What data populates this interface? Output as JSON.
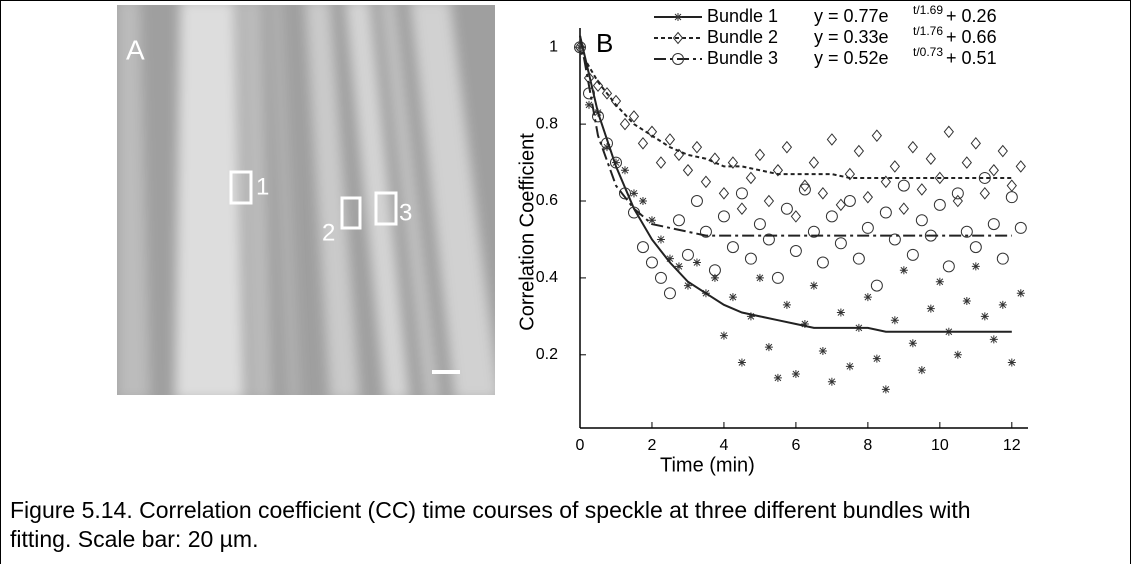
{
  "panel_a": {
    "label": "A",
    "regions": [
      "1",
      "2",
      "3"
    ]
  },
  "chart_data": {
    "type": "scatter",
    "panel_label": "B",
    "xlabel": "Time (min)",
    "ylabel": "Correlation Coefficient",
    "xlim": [
      0,
      12.45
    ],
    "ylim": [
      0.02,
      1.05
    ],
    "xticks": [
      0,
      2,
      4,
      6,
      8,
      10,
      12
    ],
    "yticks": [
      0.2,
      0.4,
      0.6,
      0.8,
      1
    ],
    "x": [
      0,
      0.25,
      0.5,
      0.75,
      1,
      1.25,
      1.5,
      1.75,
      2,
      2.25,
      2.5,
      2.75,
      3,
      3.25,
      3.5,
      3.75,
      4,
      4.25,
      4.5,
      4.75,
      5,
      5.25,
      5.5,
      5.75,
      6,
      6.25,
      6.5,
      6.75,
      7,
      7.25,
      7.5,
      7.75,
      8,
      8.25,
      8.5,
      8.75,
      9,
      9.25,
      9.5,
      9.75,
      10,
      10.25,
      10.5,
      10.75,
      11,
      11.25,
      11.5,
      11.75,
      12,
      12.25
    ],
    "fit_x": [
      0,
      0.5,
      1,
      1.5,
      2,
      2.5,
      3,
      3.5,
      4,
      4.5,
      5,
      5.5,
      6,
      6.5,
      7,
      7.5,
      8,
      8.5,
      9,
      9.5,
      10,
      10.5,
      11,
      11.5,
      12
    ],
    "series": [
      {
        "name": "Bundle 1",
        "marker": "asterisk",
        "dash": "none",
        "color": "#222222",
        "equation": {
          "base": "y = 0.77e",
          "exponent": "t/1.69",
          "rest": "+ 0.26"
        },
        "values": [
          1.0,
          0.85,
          0.83,
          0.74,
          0.7,
          0.68,
          0.62,
          0.6,
          0.55,
          0.5,
          0.45,
          0.43,
          0.38,
          0.44,
          0.36,
          0.4,
          0.25,
          0.35,
          0.18,
          0.3,
          0.4,
          0.22,
          0.14,
          0.33,
          0.15,
          0.28,
          0.38,
          0.21,
          0.13,
          0.31,
          0.17,
          0.27,
          0.35,
          0.19,
          0.11,
          0.29,
          0.42,
          0.23,
          0.16,
          0.32,
          0.39,
          0.26,
          0.2,
          0.34,
          0.43,
          0.3,
          0.24,
          0.33,
          0.18,
          0.36
        ],
        "fit": [
          1.03,
          0.83,
          0.69,
          0.58,
          0.5,
          0.44,
          0.39,
          0.36,
          0.33,
          0.31,
          0.3,
          0.29,
          0.28,
          0.27,
          0.27,
          0.27,
          0.27,
          0.26,
          0.26,
          0.26,
          0.26,
          0.26,
          0.26,
          0.26,
          0.26
        ]
      },
      {
        "name": "Bundle 2",
        "marker": "diamond",
        "dash": "4 3",
        "color": "#222222",
        "equation": {
          "base": "y = 0.33e",
          "exponent": "t/1.76",
          "rest": "+ 0.66"
        },
        "values": [
          1.0,
          0.92,
          0.9,
          0.88,
          0.86,
          0.8,
          0.82,
          0.75,
          0.78,
          0.7,
          0.76,
          0.72,
          0.68,
          0.74,
          0.65,
          0.71,
          0.62,
          0.7,
          0.58,
          0.66,
          0.72,
          0.6,
          0.68,
          0.74,
          0.56,
          0.64,
          0.7,
          0.62,
          0.76,
          0.59,
          0.67,
          0.73,
          0.61,
          0.77,
          0.65,
          0.69,
          0.58,
          0.74,
          0.63,
          0.71,
          0.66,
          0.78,
          0.6,
          0.7,
          0.75,
          0.62,
          0.68,
          0.73,
          0.64,
          0.69
        ],
        "fit": [
          0.99,
          0.91,
          0.85,
          0.8,
          0.77,
          0.74,
          0.72,
          0.71,
          0.69,
          0.69,
          0.68,
          0.67,
          0.67,
          0.67,
          0.67,
          0.66,
          0.66,
          0.66,
          0.66,
          0.66,
          0.66,
          0.66,
          0.66,
          0.66,
          0.66
        ]
      },
      {
        "name": "Bundle 3",
        "marker": "circle",
        "dash": "12 4 3 4",
        "color": "#222222",
        "equation": {
          "base": "y = 0.52e",
          "exponent": "t/0.73",
          "rest": "+ 0.51"
        },
        "values": [
          1.0,
          0.88,
          0.82,
          0.75,
          0.7,
          0.62,
          0.57,
          0.48,
          0.44,
          0.4,
          0.36,
          0.55,
          0.46,
          0.6,
          0.52,
          0.42,
          0.56,
          0.48,
          0.62,
          0.45,
          0.54,
          0.5,
          0.4,
          0.58,
          0.47,
          0.63,
          0.52,
          0.44,
          0.56,
          0.49,
          0.6,
          0.45,
          0.53,
          0.38,
          0.57,
          0.5,
          0.64,
          0.46,
          0.55,
          0.51,
          0.59,
          0.43,
          0.62,
          0.52,
          0.48,
          0.66,
          0.54,
          0.45,
          0.61,
          0.53
        ],
        "fit": [
          1.03,
          0.77,
          0.64,
          0.58,
          0.54,
          0.53,
          0.52,
          0.51,
          0.51,
          0.51,
          0.51,
          0.51,
          0.51,
          0.51,
          0.51,
          0.51,
          0.51,
          0.51,
          0.51,
          0.51,
          0.51,
          0.51,
          0.51,
          0.51,
          0.51
        ]
      }
    ]
  },
  "caption": "Figure 5.14. Correlation coefficient (CC) time courses of speckle at three different bundles with fitting. Scale bar: 20 µm."
}
